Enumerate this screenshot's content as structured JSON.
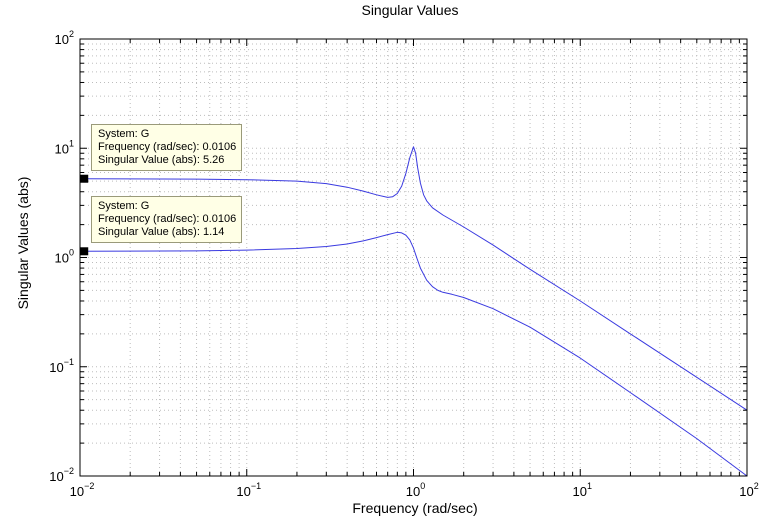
{
  "chart_data": {
    "type": "line",
    "title": "Singular Values",
    "xlabel": "Frequency (rad/sec)",
    "ylabel": "Singular Values (abs)",
    "xscale": "log",
    "yscale": "log",
    "xlim": [
      0.01,
      100
    ],
    "ylim": [
      0.01,
      100
    ],
    "grid": true,
    "grid_minor": true,
    "line_color": "#3a3ae0",
    "x_ticks": [
      {
        "base": "10",
        "exp": "−2"
      },
      {
        "base": "10",
        "exp": "−1"
      },
      {
        "base": "10",
        "exp": "0"
      },
      {
        "base": "10",
        "exp": "1"
      },
      {
        "base": "10",
        "exp": "2"
      }
    ],
    "y_ticks": [
      {
        "base": "10",
        "exp": "−2"
      },
      {
        "base": "10",
        "exp": "−1"
      },
      {
        "base": "10",
        "exp": "0"
      },
      {
        "base": "10",
        "exp": "1"
      },
      {
        "base": "10",
        "exp": "2"
      }
    ],
    "series": [
      {
        "x": [
          0.01,
          0.05,
          0.1,
          0.2,
          0.3,
          0.4,
          0.5,
          0.6,
          0.7,
          0.75,
          0.8,
          0.85,
          0.9,
          0.95,
          1.0,
          1.03,
          1.06,
          1.1,
          1.15,
          1.2,
          1.3,
          1.5,
          2,
          3,
          5,
          10,
          20,
          50,
          100
        ],
        "y": [
          5.26,
          5.22,
          5.15,
          5.0,
          4.75,
          4.4,
          4.05,
          3.75,
          3.55,
          3.6,
          3.85,
          4.5,
          5.9,
          8.2,
          10.3,
          9.0,
          6.6,
          4.8,
          3.75,
          3.3,
          2.85,
          2.45,
          1.9,
          1.3,
          0.78,
          0.4,
          0.2,
          0.08,
          0.04
        ]
      },
      {
        "x": [
          0.01,
          0.05,
          0.1,
          0.2,
          0.3,
          0.4,
          0.5,
          0.6,
          0.7,
          0.8,
          0.85,
          0.9,
          0.95,
          1.0,
          1.05,
          1.1,
          1.2,
          1.3,
          1.4,
          1.5,
          1.7,
          2,
          3,
          5,
          10,
          20,
          50,
          100
        ],
        "y": [
          1.14,
          1.15,
          1.17,
          1.21,
          1.26,
          1.33,
          1.42,
          1.52,
          1.62,
          1.7,
          1.68,
          1.6,
          1.45,
          1.22,
          0.98,
          0.8,
          0.62,
          0.54,
          0.5,
          0.48,
          0.46,
          0.43,
          0.34,
          0.23,
          0.12,
          0.058,
          0.022,
          0.01
        ]
      }
    ],
    "datatips": [
      {
        "system": "System: G",
        "frequency": "Frequency (rad/sec): 0.0106",
        "value": "Singular Value (abs): 5.26",
        "x": 0.0106,
        "y": 5.26
      },
      {
        "system": "System: G",
        "frequency": "Frequency (rad/sec): 0.0106",
        "value": "Singular Value (abs): 1.14",
        "x": 0.0106,
        "y": 1.14
      }
    ]
  }
}
